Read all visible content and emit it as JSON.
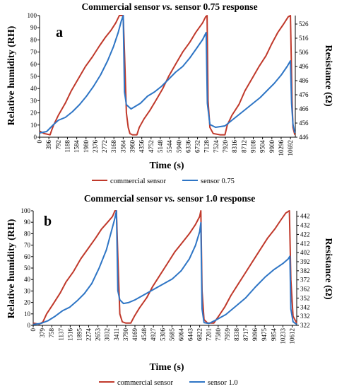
{
  "chart_data": [
    {
      "type": "line",
      "panel_label": "a",
      "title": "Commercial sensor vs. sensor 0.75 response",
      "title_parts": [
        "Commercial sensor ",
        "vs.",
        " sensor 0.75 response"
      ],
      "xlabel": "Time (s)",
      "ylabel": "Relative humidity (RH)",
      "y2label": "Resistance (Ω)",
      "ylim": [
        0,
        100
      ],
      "y2lim": [
        446,
        532
      ],
      "xlim": [
        0,
        10900
      ],
      "x_ticks": [
        "0",
        "396",
        "792",
        "1188",
        "1584",
        "1980",
        "2376",
        "2772",
        "3168",
        "3564",
        "3960",
        "4356",
        "4752",
        "5148",
        "5544",
        "5940",
        "6336",
        "6732",
        "7128",
        "7524",
        "7920",
        "8316",
        "8712",
        "9108",
        "9504",
        "9900",
        "10296",
        "10692"
      ],
      "y_ticks": [
        "0",
        "10",
        "20",
        "30",
        "40",
        "50",
        "60",
        "70",
        "80",
        "90",
        "100"
      ],
      "y2_ticks": [
        "446",
        "456",
        "466",
        "476",
        "486",
        "496",
        "506",
        "516",
        "526"
      ],
      "grid": false,
      "legend_position": "bottom",
      "series": [
        {
          "name": "commercial sensor",
          "axis": "left",
          "color": "#c0392b",
          "points": [
            [
              0,
              5
            ],
            [
              200,
              3
            ],
            [
              450,
              2
            ],
            [
              520,
              6
            ],
            [
              600,
              10
            ],
            [
              800,
              18
            ],
            [
              1100,
              28
            ],
            [
              1350,
              38
            ],
            [
              1650,
              48
            ],
            [
              1950,
              58
            ],
            [
              2250,
              66
            ],
            [
              2550,
              75
            ],
            [
              2800,
              82
            ],
            [
              3050,
              88
            ],
            [
              3250,
              94
            ],
            [
              3400,
              100
            ],
            [
              3564,
              100
            ],
            [
              3620,
              70
            ],
            [
              3700,
              20
            ],
            [
              3780,
              8
            ],
            [
              3850,
              3
            ],
            [
              3960,
              2
            ],
            [
              4150,
              2
            ],
            [
              4250,
              8
            ],
            [
              4450,
              15
            ],
            [
              4700,
              22
            ],
            [
              4950,
              30
            ],
            [
              5250,
              40
            ],
            [
              5500,
              50
            ],
            [
              5800,
              60
            ],
            [
              6100,
              70
            ],
            [
              6400,
              78
            ],
            [
              6650,
              86
            ],
            [
              6950,
              94
            ],
            [
              7080,
              99
            ],
            [
              7140,
              100
            ],
            [
              7180,
              30
            ],
            [
              7260,
              8
            ],
            [
              7400,
              3
            ],
            [
              7700,
              2
            ],
            [
              7900,
              2
            ],
            [
              8000,
              10
            ],
            [
              8200,
              18
            ],
            [
              8500,
              27
            ],
            [
              8750,
              38
            ],
            [
              9050,
              48
            ],
            [
              9350,
              58
            ],
            [
              9650,
              67
            ],
            [
              9900,
              77
            ],
            [
              10150,
              86
            ],
            [
              10400,
              93
            ],
            [
              10600,
              99
            ],
            [
              10692,
              100
            ],
            [
              10760,
              30
            ],
            [
              10800,
              8
            ],
            [
              10880,
              2
            ]
          ]
        },
        {
          "name": "sensor 0.75",
          "axis": "right",
          "color": "#2e75c5",
          "points": [
            [
              0,
              449
            ],
            [
              300,
              450
            ],
            [
              600,
              455
            ],
            [
              800,
              458
            ],
            [
              1100,
              460
            ],
            [
              1400,
              464
            ],
            [
              1700,
              469
            ],
            [
              2000,
              475
            ],
            [
              2300,
              482
            ],
            [
              2600,
              490
            ],
            [
              2900,
              500
            ],
            [
              3150,
              510
            ],
            [
              3350,
              520
            ],
            [
              3480,
              528
            ],
            [
              3564,
              532
            ],
            [
              3620,
              478
            ],
            [
              3700,
              469
            ],
            [
              3900,
              466
            ],
            [
              4100,
              468
            ],
            [
              4300,
              470
            ],
            [
              4600,
              475
            ],
            [
              4900,
              478
            ],
            [
              5200,
              482
            ],
            [
              5500,
              487
            ],
            [
              5800,
              492
            ],
            [
              6100,
              496
            ],
            [
              6400,
              502
            ],
            [
              6700,
              509
            ],
            [
              6950,
              515
            ],
            [
              7100,
              520
            ],
            [
              7150,
              470
            ],
            [
              7260,
              455
            ],
            [
              7500,
              453
            ],
            [
              7900,
              454
            ],
            [
              8200,
              458
            ],
            [
              8500,
              462
            ],
            [
              8800,
              466
            ],
            [
              9100,
              470
            ],
            [
              9400,
              474
            ],
            [
              9700,
              479
            ],
            [
              10000,
              484
            ],
            [
              10300,
              490
            ],
            [
              10550,
              496
            ],
            [
              10692,
              500
            ],
            [
              10740,
              470
            ],
            [
              10800,
              455
            ],
            [
              10880,
              449
            ]
          ]
        }
      ]
    },
    {
      "type": "line",
      "panel_label": "b",
      "title": "Commercial sensor vs. sensor 1.0 response",
      "title_parts": [
        "Commercial sensor ",
        "vs.",
        " sensor 1.0 response"
      ],
      "xlabel": "Time (s)",
      "ylabel": "Relative humidity (RH)",
      "y2label": "Resistance (Ω)",
      "ylim": [
        0,
        100
      ],
      "y2lim": [
        322,
        448
      ],
      "xlim": [
        0,
        10800
      ],
      "x_ticks": [
        "0",
        "379",
        "758",
        "1137",
        "1516",
        "1895",
        "2274",
        "2653",
        "3032",
        "3411",
        "3790",
        "4169",
        "4548",
        "4927",
        "5306",
        "5685",
        "6064",
        "6443",
        "6822",
        "7201",
        "7580",
        "7959",
        "8338",
        "8717",
        "9096",
        "9475",
        "9854",
        "10233",
        "10612"
      ],
      "y_ticks": [
        "0",
        "10",
        "20",
        "30",
        "40",
        "50",
        "60",
        "70",
        "80",
        "90",
        "100"
      ],
      "y2_ticks": [
        "322",
        "332",
        "342",
        "352",
        "362",
        "372",
        "382",
        "392",
        "402",
        "412",
        "422",
        "432",
        "442"
      ],
      "grid": false,
      "legend_position": "bottom",
      "series": [
        {
          "name": "commercial sensor",
          "axis": "left",
          "color": "#c0392b",
          "points": [
            [
              0,
              2
            ],
            [
              250,
              1
            ],
            [
              400,
              3
            ],
            [
              550,
              10
            ],
            [
              800,
              18
            ],
            [
              1100,
              28
            ],
            [
              1350,
              38
            ],
            [
              1650,
              47
            ],
            [
              1950,
              58
            ],
            [
              2250,
              67
            ],
            [
              2550,
              76
            ],
            [
              2800,
              84
            ],
            [
              3050,
              90
            ],
            [
              3250,
              95
            ],
            [
              3350,
              100
            ],
            [
              3411,
              100
            ],
            [
              3470,
              60
            ],
            [
              3550,
              10
            ],
            [
              3650,
              3
            ],
            [
              3800,
              2
            ],
            [
              4000,
              2
            ],
            [
              4150,
              8
            ],
            [
              4350,
              15
            ],
            [
              4650,
              24
            ],
            [
              4900,
              34
            ],
            [
              5200,
              44
            ],
            [
              5500,
              54
            ],
            [
              5800,
              64
            ],
            [
              6100,
              72
            ],
            [
              6400,
              80
            ],
            [
              6650,
              88
            ],
            [
              6822,
              95
            ],
            [
              6870,
              100
            ],
            [
              6920,
              30
            ],
            [
              7000,
              5
            ],
            [
              7150,
              2
            ],
            [
              7400,
              2
            ],
            [
              7600,
              8
            ],
            [
              7850,
              16
            ],
            [
              8100,
              26
            ],
            [
              8400,
              36
            ],
            [
              8700,
              46
            ],
            [
              9000,
              56
            ],
            [
              9300,
              66
            ],
            [
              9600,
              76
            ],
            [
              9900,
              84
            ],
            [
              10150,
              92
            ],
            [
              10350,
              98
            ],
            [
              10500,
              100
            ],
            [
              10560,
              40
            ],
            [
              10650,
              8
            ],
            [
              10800,
              2
            ]
          ]
        },
        {
          "name": "sensor 1.0",
          "axis": "right",
          "color": "#2e75c5",
          "points": [
            [
              0,
              323
            ],
            [
              300,
              324
            ],
            [
              600,
              327
            ],
            [
              900,
              332
            ],
            [
              1200,
              338
            ],
            [
              1500,
              342
            ],
            [
              1800,
              349
            ],
            [
              2100,
              357
            ],
            [
              2400,
              368
            ],
            [
              2700,
              385
            ],
            [
              3000,
              405
            ],
            [
              3200,
              425
            ],
            [
              3350,
              440
            ],
            [
              3411,
              448
            ],
            [
              3470,
              360
            ],
            [
              3550,
              350
            ],
            [
              3700,
              346
            ],
            [
              3900,
              347
            ],
            [
              4169,
              350
            ],
            [
              4500,
              355
            ],
            [
              4900,
              361
            ],
            [
              5300,
              367
            ],
            [
              5700,
              373
            ],
            [
              6064,
              382
            ],
            [
              6400,
              395
            ],
            [
              6650,
              410
            ],
            [
              6822,
              425
            ],
            [
              6870,
              435
            ],
            [
              6920,
              340
            ],
            [
              7000,
              325
            ],
            [
              7200,
              324
            ],
            [
              7500,
              328
            ],
            [
              7900,
              334
            ],
            [
              8300,
              343
            ],
            [
              8700,
              352
            ],
            [
              9100,
              364
            ],
            [
              9500,
              375
            ],
            [
              9850,
              383
            ],
            [
              10233,
              390
            ],
            [
              10450,
              395
            ],
            [
              10520,
              398
            ],
            [
              10560,
              340
            ],
            [
              10650,
              326
            ],
            [
              10800,
              323
            ]
          ]
        }
      ]
    }
  ]
}
